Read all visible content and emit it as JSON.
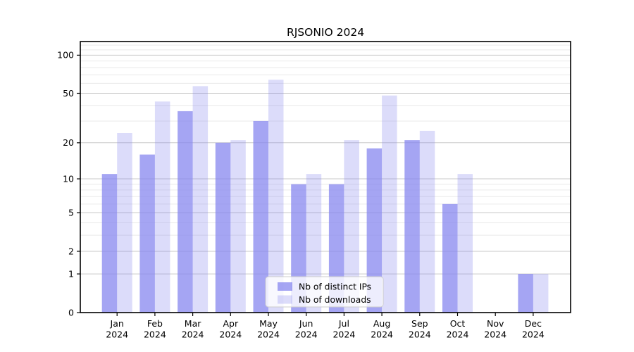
{
  "figure": {
    "background": "#ffffff"
  },
  "chart_data": {
    "type": "bar",
    "title": "RJSONIO 2024",
    "categories": [
      "Jan",
      "Feb",
      "Mar",
      "Apr",
      "May",
      "Jun",
      "Jul",
      "Aug",
      "Sep",
      "Oct",
      "Nov",
      "Dec"
    ],
    "category_year": "2024",
    "series": [
      {
        "name": "Nb of distinct IPs",
        "values": [
          11,
          16,
          36,
          20,
          30,
          9,
          9,
          18,
          21,
          6,
          0,
          1
        ],
        "color": "rgba(130,130,238,0.72)"
      },
      {
        "name": "Nb of downloads",
        "values": [
          24,
          43,
          57,
          21,
          64,
          11,
          21,
          48,
          25,
          11,
          0,
          1
        ],
        "color": "rgba(130,130,238,0.28)"
      }
    ],
    "yscale": "log1p",
    "ylim": [
      0,
      128
    ],
    "yticks": [
      0,
      1,
      2,
      5,
      10,
      20,
      50,
      100
    ],
    "minor_gridlines": [
      3,
      4,
      6,
      7,
      8,
      9,
      30,
      40,
      60,
      70,
      80,
      90,
      110,
      120
    ],
    "grid": true,
    "legend_position": "lower-center-inside",
    "xlabel": "",
    "ylabel": ""
  },
  "colors": {
    "bar_base": "#8282ee",
    "major_grid": "#c9c9c9",
    "minor_grid": "#eaeaea",
    "axis_frame": "#000000",
    "text": "#000000",
    "legend_border": "#cccccc",
    "legend_background": "rgba(255,255,255,0.8)"
  }
}
